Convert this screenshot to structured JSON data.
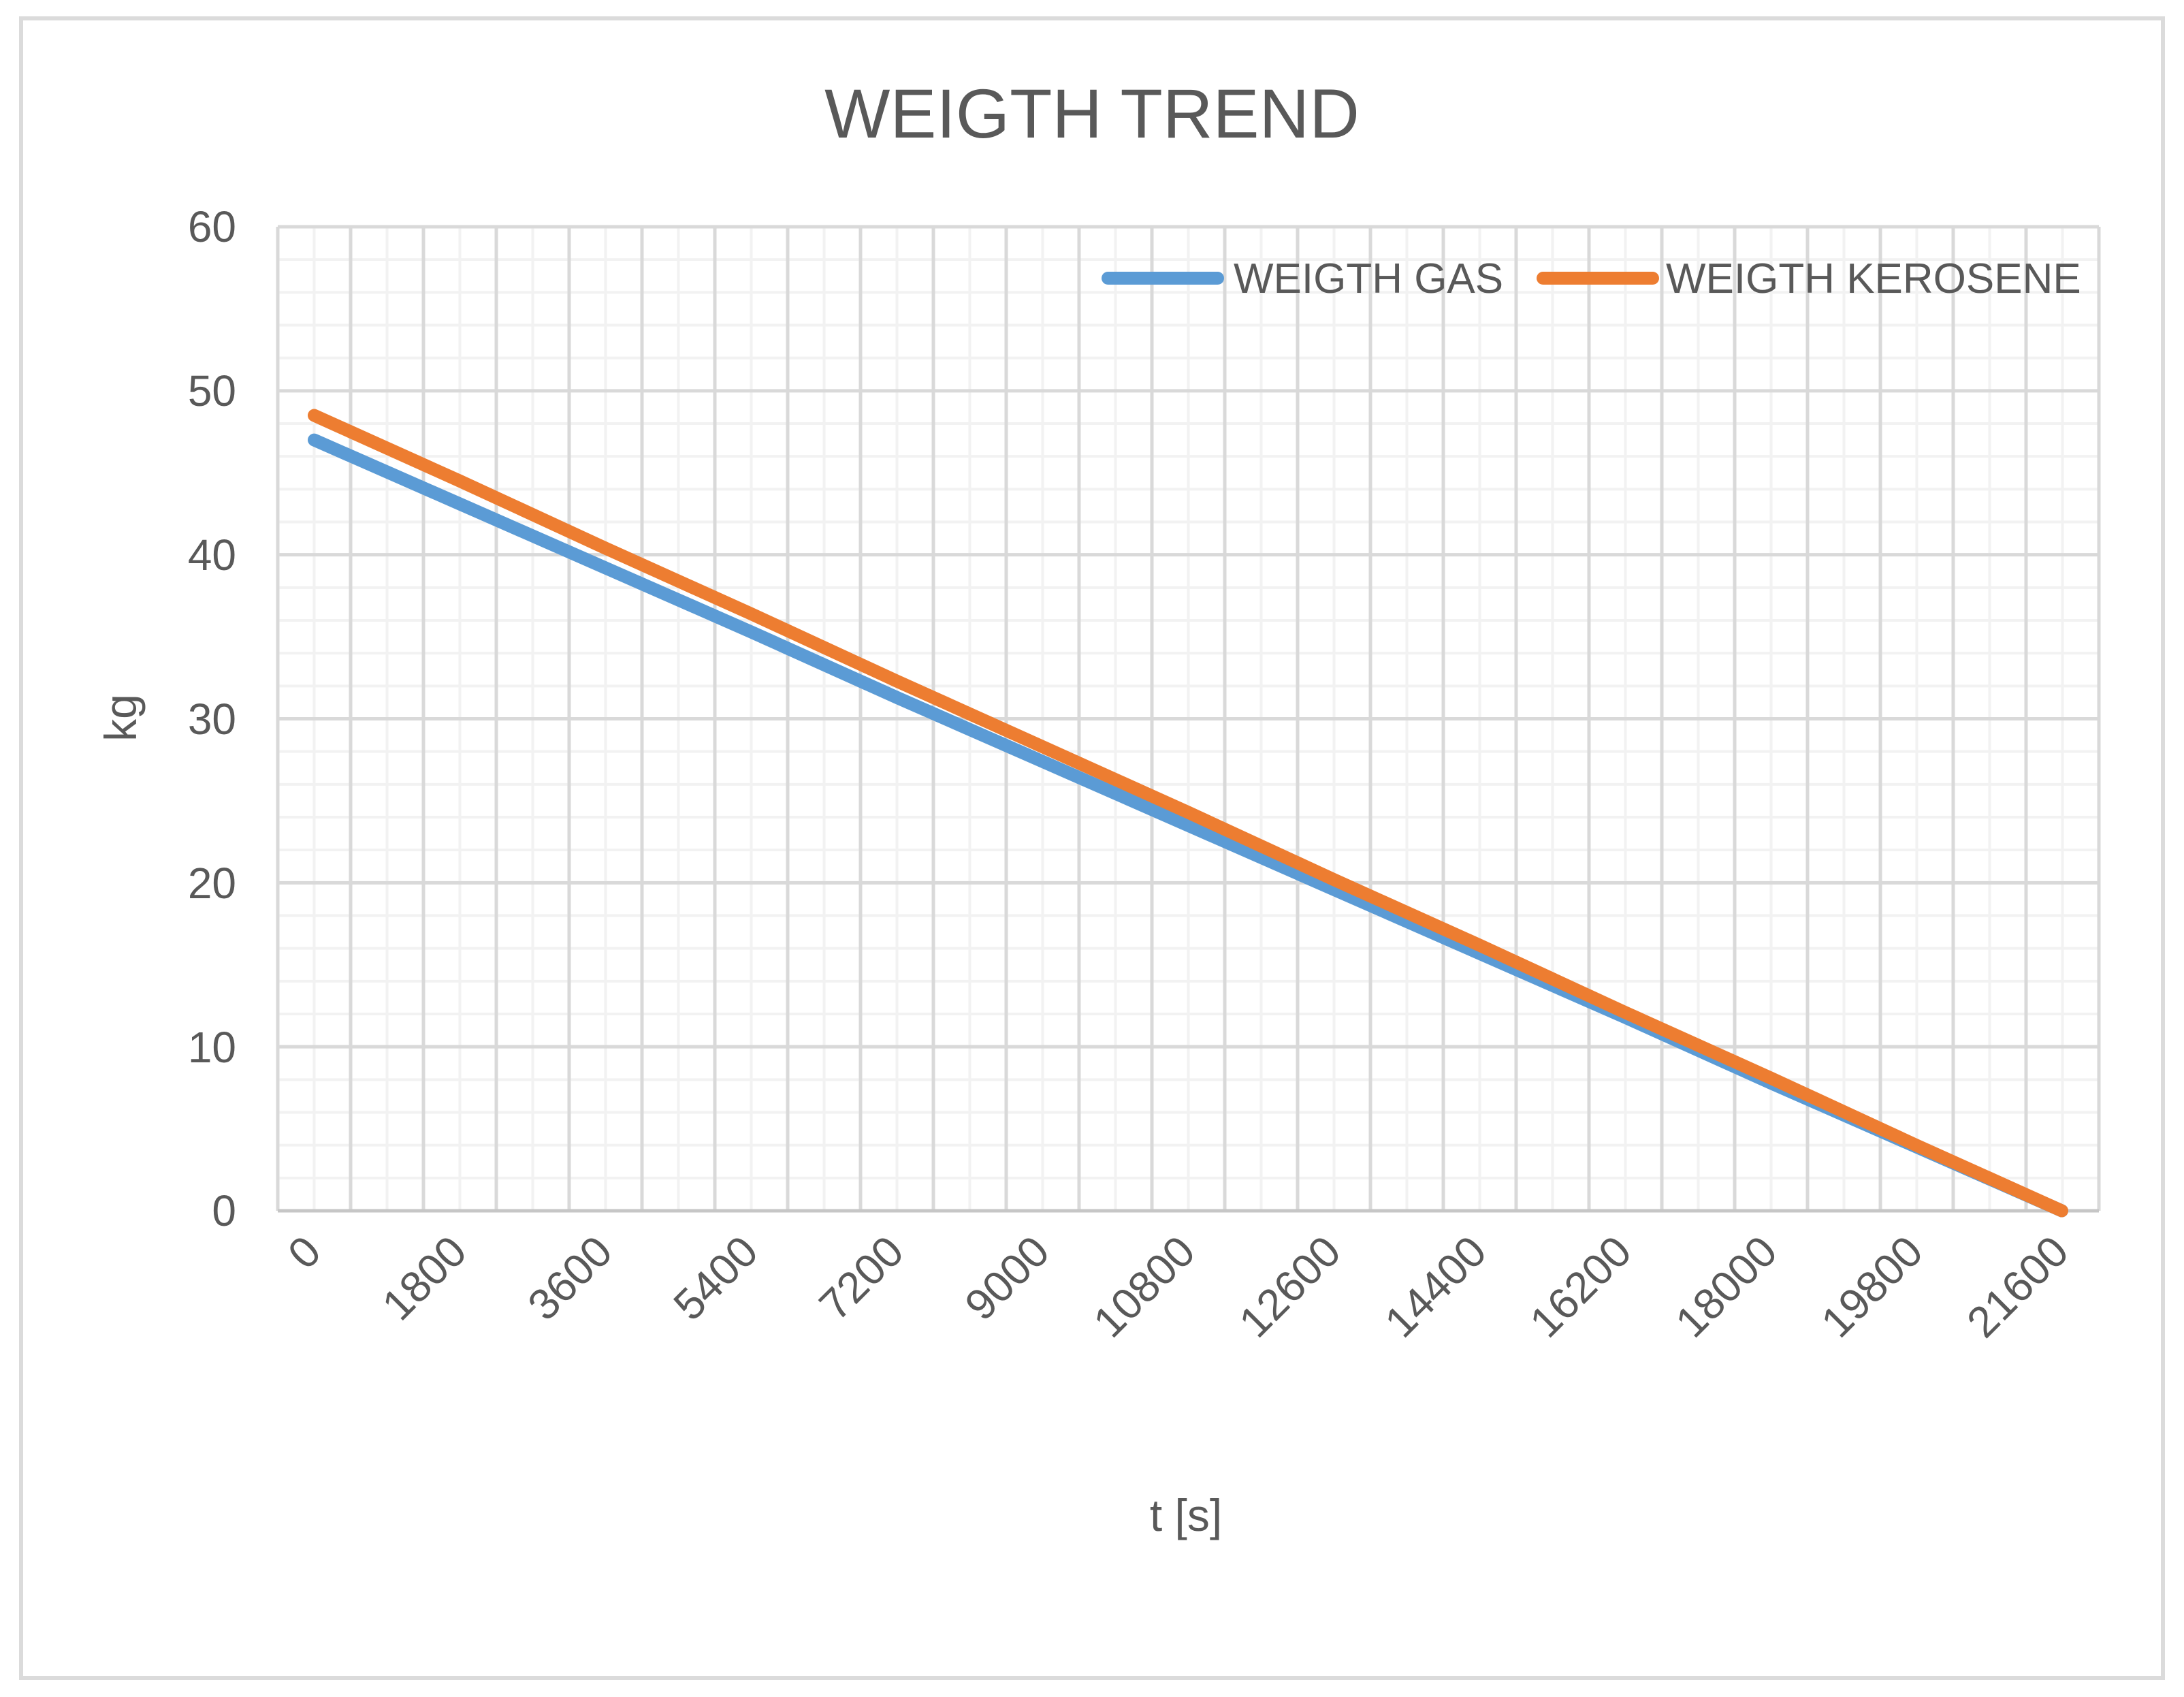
{
  "chart": {
    "title": "WEIGTH TREND",
    "xlabel": "t [s]",
    "ylabel": "kg"
  },
  "colors": {
    "series_gas": "#5B9BD5",
    "series_kerosene": "#ED7D31",
    "text_gray": "#595959",
    "gridline_major": "#D9D9D9",
    "gridline_minor": "#F2F2F2",
    "axis_line": "#C6C6C6",
    "chart_border": "#DBDBDB"
  },
  "chart_data": {
    "type": "line",
    "title": "WEIGTH TREND",
    "xlabel": "t [s]",
    "ylabel": "kg",
    "xlim": [
      -450,
      22050
    ],
    "ylim": [
      0,
      60
    ],
    "x_major_unit": 900,
    "x_minor_unit": 450,
    "y_major_unit": 10,
    "y_minor_unit": 2,
    "grid": "major+minor",
    "legend_position": "top-right-inside",
    "x_ticks": [
      0,
      1800,
      3600,
      5400,
      7200,
      9000,
      10800,
      12600,
      14400,
      16200,
      18000,
      19800,
      21600
    ],
    "x_tick_labels": [
      "0",
      "1800",
      "3600",
      "5400",
      "7200",
      "9000",
      "10800",
      "12600",
      "14400",
      "16200",
      "18000",
      "19800",
      "21600"
    ],
    "y_tick_labels": [
      "60",
      "50",
      "40",
      "30",
      "20",
      "10",
      "0"
    ],
    "series": [
      {
        "name": "WEIGTH GAS",
        "color": "#5B9BD5",
        "x": [
          0,
          1800,
          3600,
          5400,
          7200,
          9000,
          10800,
          12600,
          14400,
          16200,
          18000,
          19800,
          21600
        ],
        "values": [
          47.0,
          43.1,
          39.2,
          35.3,
          31.3,
          27.4,
          23.5,
          19.6,
          15.7,
          11.8,
          7.8,
          3.9,
          0.0
        ]
      },
      {
        "name": "WEIGTH KEROSENE",
        "color": "#ED7D31",
        "x": [
          0,
          1800,
          3600,
          5400,
          7200,
          9000,
          10800,
          12600,
          14400,
          16200,
          18000,
          19800,
          21600
        ],
        "values": [
          48.5,
          44.5,
          40.4,
          36.4,
          32.3,
          28.3,
          24.3,
          20.2,
          16.2,
          12.1,
          8.1,
          4.0,
          0.0
        ]
      }
    ]
  }
}
